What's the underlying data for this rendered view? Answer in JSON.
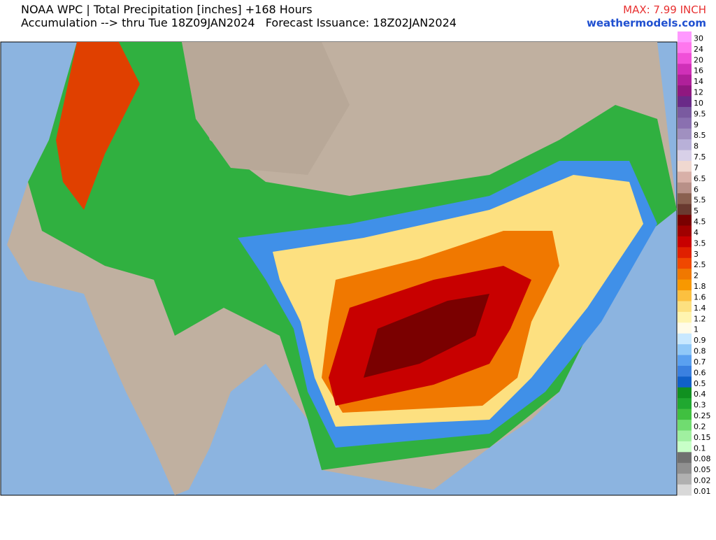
{
  "header": {
    "title": "NOAA WPC | Total Precipitation [inches] +168 Hours",
    "subtitle": "Accumulation --> thru Tue 18Z09JAN2024   Forecast Issuance: 18Z02JAN2024",
    "max": "MAX: 7.99 INCH",
    "site": "weathermodels.com"
  },
  "legend": {
    "entries": [
      {
        "label": "30",
        "color": "#ff99ff"
      },
      {
        "label": "24",
        "color": "#ff77ee"
      },
      {
        "label": "20",
        "color": "#f050d8"
      },
      {
        "label": "16",
        "color": "#d030b8"
      },
      {
        "label": "14",
        "color": "#b0209a"
      },
      {
        "label": "12",
        "color": "#901880"
      },
      {
        "label": "10",
        "color": "#6a2a88"
      },
      {
        "label": "9.5",
        "color": "#7a5aa0"
      },
      {
        "label": "9",
        "color": "#8a70b0"
      },
      {
        "label": "8.5",
        "color": "#a090c0"
      },
      {
        "label": "8",
        "color": "#b8b0d8"
      },
      {
        "label": "7.5",
        "color": "#d8d0e8"
      },
      {
        "label": "7",
        "color": "#f0d8d0"
      },
      {
        "label": "6.5",
        "color": "#d8b0a8"
      },
      {
        "label": "6",
        "color": "#b89088"
      },
      {
        "label": "5.5",
        "color": "#8a6050"
      },
      {
        "label": "5",
        "color": "#6a3a30"
      },
      {
        "label": "4.5",
        "color": "#7a0000"
      },
      {
        "label": "4",
        "color": "#a00000"
      },
      {
        "label": "3.5",
        "color": "#c80000"
      },
      {
        "label": "3",
        "color": "#e02000"
      },
      {
        "label": "2.5",
        "color": "#f04800"
      },
      {
        "label": "2",
        "color": "#f07800"
      },
      {
        "label": "1.8",
        "color": "#f89800"
      },
      {
        "label": "1.6",
        "color": "#fcc040"
      },
      {
        "label": "1.4",
        "color": "#fde080"
      },
      {
        "label": "1.2",
        "color": "#fff4b0"
      },
      {
        "label": "1",
        "color": "#fffbe8"
      },
      {
        "label": "0.9",
        "color": "#c8e8ff"
      },
      {
        "label": "0.8",
        "color": "#90c8f8"
      },
      {
        "label": "0.7",
        "color": "#5aa0f0"
      },
      {
        "label": "0.6",
        "color": "#3a80e0"
      },
      {
        "label": "0.5",
        "color": "#1060c8"
      },
      {
        "label": "0.4",
        "color": "#109020"
      },
      {
        "label": "0.3",
        "color": "#20a830"
      },
      {
        "label": "0.25",
        "color": "#40c040"
      },
      {
        "label": "0.2",
        "color": "#70dc70"
      },
      {
        "label": "0.15",
        "color": "#a0f0a0"
      },
      {
        "label": "0.1",
        "color": "#c8ffc8"
      },
      {
        "label": "0.08",
        "color": "#707070"
      },
      {
        "label": "0.05",
        "color": "#909090"
      },
      {
        "label": "0.02",
        "color": "#b0b0b0"
      },
      {
        "label": "0.01",
        "color": "#d8d8d8"
      }
    ]
  }
}
